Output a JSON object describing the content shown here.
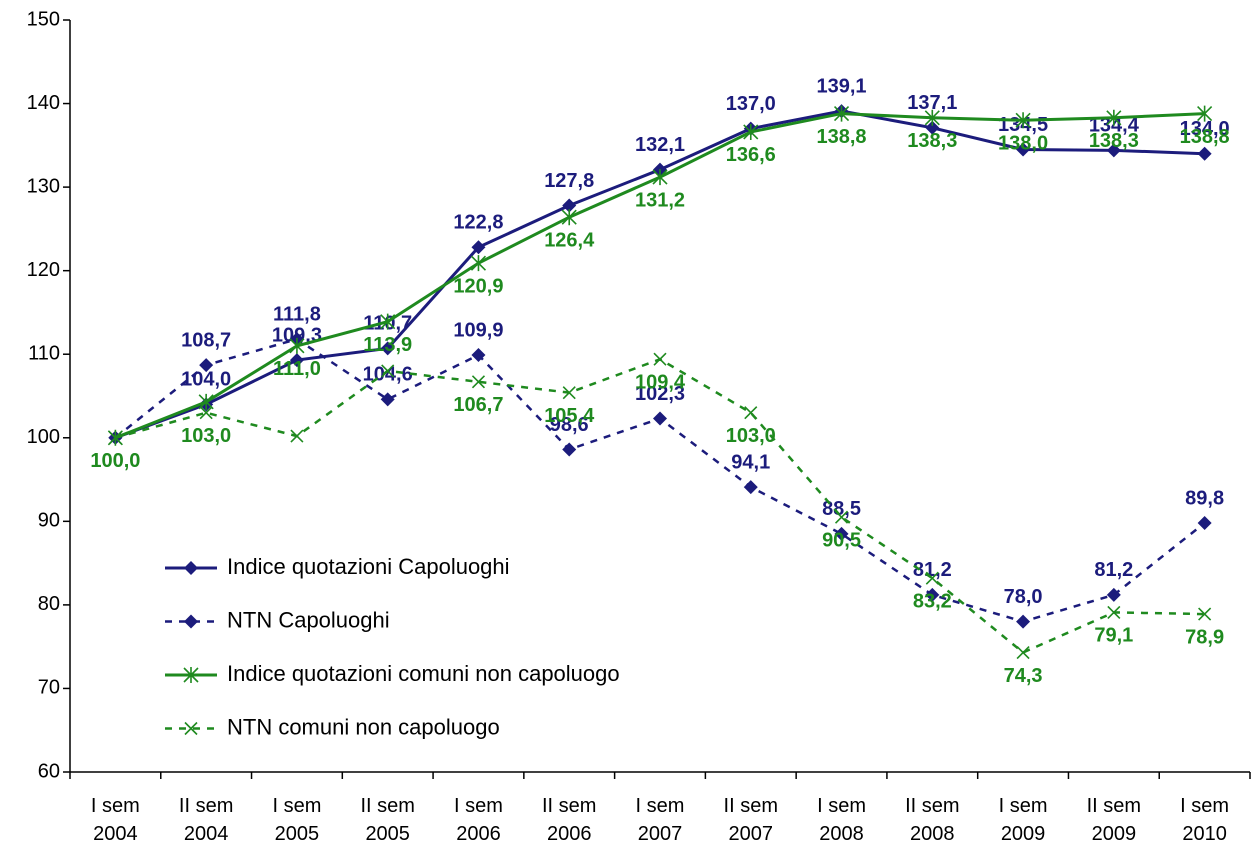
{
  "chart_data": {
    "type": "line",
    "categories": [
      "I sem 2004",
      "II sem 2004",
      "I sem 2005",
      "II sem 2005",
      "I sem 2006",
      "II sem 2006",
      "I sem 2007",
      "II sem 2007",
      "I sem 2008",
      "II sem 2008",
      "I sem 2009",
      "II sem 2009",
      "I sem 2010"
    ],
    "series": [
      {
        "name": "Indice quotazioni Capoluoghi",
        "color": "#1c1c7c",
        "dashed": false,
        "marker": "diamond",
        "label_side": "above",
        "values": [
          100.0,
          104.0,
          109.3,
          110.7,
          122.8,
          127.8,
          132.1,
          137.0,
          139.1,
          137.1,
          134.5,
          134.4,
          134.0
        ],
        "value_labels": [
          null,
          "104,0",
          "109,3",
          "110,7",
          "122,8",
          "127,8",
          "132,1",
          "137,0",
          "139,1",
          "137,1",
          "134,5",
          "134,4",
          "134,0"
        ]
      },
      {
        "name": "NTN Capoluoghi",
        "color": "#1c1c7c",
        "dashed": true,
        "marker": "diamond",
        "label_side": "above",
        "values": [
          100.0,
          108.7,
          111.8,
          104.6,
          109.9,
          98.6,
          102.3,
          94.1,
          88.5,
          81.2,
          78.0,
          81.2,
          89.8
        ],
        "value_labels": [
          null,
          "108,7",
          "111,8",
          "104,6",
          "109,9",
          "98,6",
          "102,3",
          "94,1",
          "88,5",
          "81,2",
          "78,0",
          "81,2",
          "89,8"
        ]
      },
      {
        "name": "Indice quotazioni comuni non capoluogo",
        "color": "#1f8a1f",
        "dashed": false,
        "marker": "star",
        "label_side": "below",
        "values": [
          100.0,
          104.3,
          111.0,
          113.9,
          120.9,
          126.4,
          131.2,
          136.6,
          138.8,
          138.3,
          138.0,
          138.3,
          138.8
        ],
        "value_labels": [
          "100,0",
          null,
          "111,0",
          "113,9",
          "120,9",
          "126,4",
          "131,2",
          "136,6",
          "138,8",
          "138,3",
          "138,0",
          "138,3",
          "138,8"
        ]
      },
      {
        "name": "NTN comuni non capoluogo",
        "color": "#1f8a1f",
        "dashed": true,
        "marker": "x",
        "label_side": "below",
        "values": [
          100.0,
          103.0,
          100.2,
          108.0,
          106.7,
          105.4,
          109.4,
          103.0,
          90.5,
          83.2,
          74.3,
          79.1,
          78.9
        ],
        "value_labels": [
          null,
          "103,0",
          null,
          null,
          "106,7",
          "105,4",
          "109,4",
          "103,0",
          "90,5",
          "83,2",
          "74,3",
          "79,1",
          "78,9"
        ]
      }
    ],
    "ylim": [
      60,
      150
    ],
    "yticks": [
      60,
      70,
      80,
      90,
      100,
      110,
      120,
      130,
      140,
      150
    ],
    "grid": false,
    "legend": "left"
  }
}
